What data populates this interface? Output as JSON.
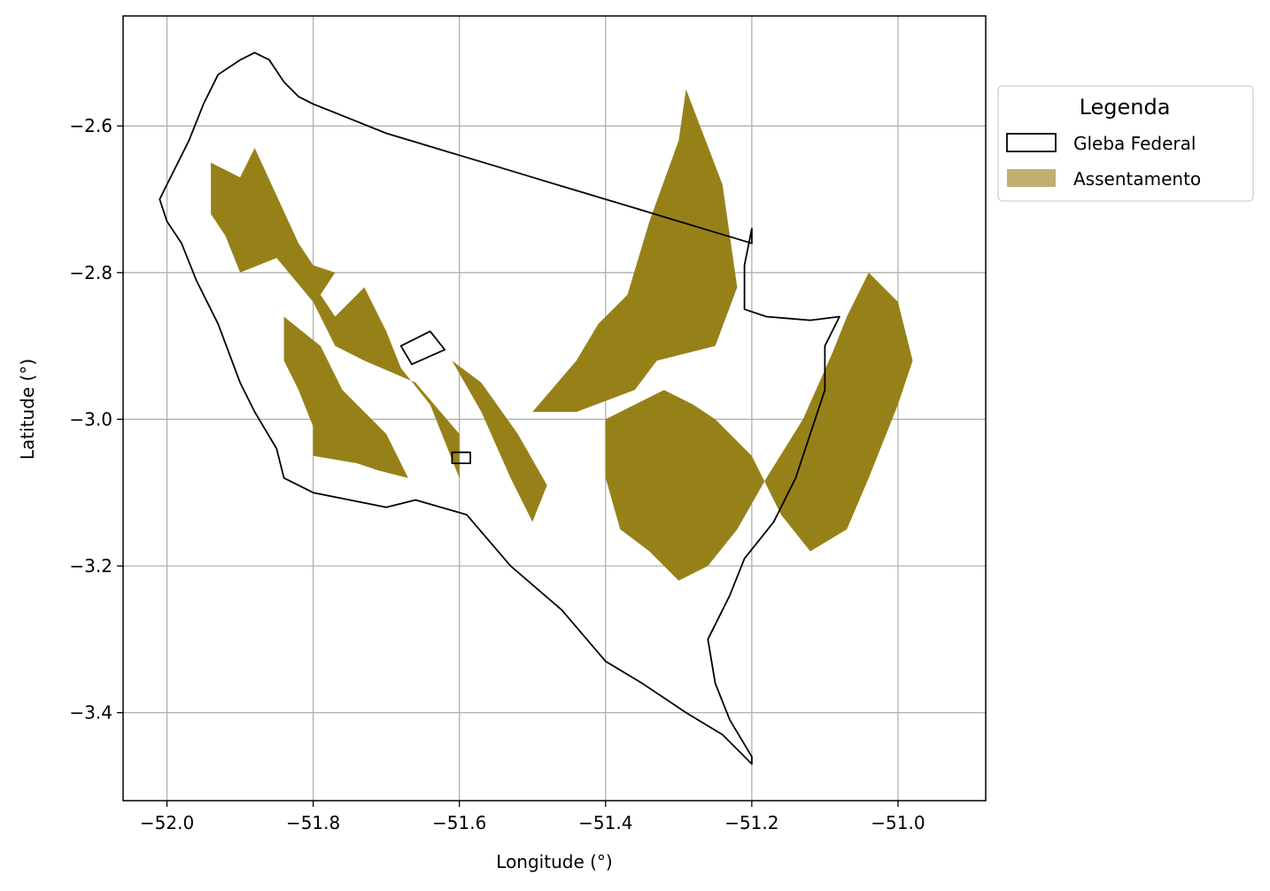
{
  "chart_data": {
    "type": "map",
    "xlabel": "Longitude (°)",
    "ylabel": "Latitude (°)",
    "xlim": [
      -52.06,
      -50.88
    ],
    "ylim": [
      -3.52,
      -2.45
    ],
    "x_ticks": [
      -52.0,
      -51.8,
      -51.6,
      -51.4,
      -51.2,
      -51.0
    ],
    "x_tick_labels": [
      "−52.0",
      "−51.8",
      "−51.6",
      "−51.4",
      "−51.2",
      "−51.0"
    ],
    "y_ticks": [
      -2.6,
      -2.8,
      -3.0,
      -3.2,
      -3.4
    ],
    "y_tick_labels": [
      "−2.6",
      "−2.8",
      "−3.0",
      "−3.2",
      "−3.4"
    ],
    "grid": true,
    "legend": {
      "title": "Legenda",
      "placement": "outside-right-top",
      "entries": [
        {
          "label": "Gleba Federal",
          "style": "outline",
          "edge_color": "#000000",
          "fill": "none"
        },
        {
          "label": "Assentamento",
          "style": "filled",
          "color": "#bfb170"
        }
      ]
    },
    "colors": {
      "assentamento": "#968119",
      "gleba_outline": "#000000",
      "grid": "#b0b0b0"
    },
    "layers": [
      {
        "name": "Gleba Federal",
        "polygons": [
          [
            [
              -51.88,
              -2.5
            ],
            [
              -51.86,
              -2.51
            ],
            [
              -51.84,
              -2.54
            ],
            [
              -51.82,
              -2.56
            ],
            [
              -51.8,
              -2.57
            ],
            [
              -51.75,
              -2.59
            ],
            [
              -51.7,
              -2.61
            ],
            [
              -51.65,
              -2.625
            ],
            [
              -51.6,
              -2.64
            ],
            [
              -51.55,
              -2.655
            ],
            [
              -51.5,
              -2.67
            ],
            [
              -51.45,
              -2.685
            ],
            [
              -51.4,
              -2.7
            ],
            [
              -51.35,
              -2.715
            ],
            [
              -51.3,
              -2.73
            ],
            [
              -51.25,
              -2.745
            ],
            [
              -51.2,
              -2.76
            ],
            [
              -51.2,
              -2.74
            ],
            [
              -51.21,
              -2.79
            ],
            [
              -51.21,
              -2.85
            ],
            [
              -51.18,
              -2.86
            ],
            [
              -51.12,
              -2.865
            ],
            [
              -51.08,
              -2.86
            ],
            [
              -51.1,
              -2.9
            ],
            [
              -51.1,
              -2.96
            ],
            [
              -51.12,
              -3.02
            ],
            [
              -51.14,
              -3.08
            ],
            [
              -51.17,
              -3.14
            ],
            [
              -51.21,
              -3.19
            ],
            [
              -51.23,
              -3.24
            ],
            [
              -51.26,
              -3.3
            ],
            [
              -51.25,
              -3.36
            ],
            [
              -51.23,
              -3.41
            ],
            [
              -51.2,
              -3.46
            ],
            [
              -51.2,
              -3.47
            ],
            [
              -51.21,
              -3.46
            ],
            [
              -51.24,
              -3.43
            ],
            [
              -51.29,
              -3.4
            ],
            [
              -51.35,
              -3.36
            ],
            [
              -51.4,
              -3.33
            ],
            [
              -51.46,
              -3.26
            ],
            [
              -51.53,
              -3.2
            ],
            [
              -51.59,
              -3.13
            ],
            [
              -51.66,
              -3.11
            ],
            [
              -51.7,
              -3.12
            ],
            [
              -51.75,
              -3.11
            ],
            [
              -51.8,
              -3.1
            ],
            [
              -51.84,
              -3.08
            ],
            [
              -51.85,
              -3.04
            ],
            [
              -51.88,
              -2.99
            ],
            [
              -51.9,
              -2.95
            ],
            [
              -51.93,
              -2.87
            ],
            [
              -51.96,
              -2.81
            ],
            [
              -51.98,
              -2.76
            ],
            [
              -52.0,
              -2.73
            ],
            [
              -52.01,
              -2.7
            ],
            [
              -52.0,
              -2.68
            ],
            [
              -51.97,
              -2.62
            ],
            [
              -51.95,
              -2.57
            ],
            [
              -51.93,
              -2.53
            ],
            [
              -51.9,
              -2.51
            ],
            [
              -51.88,
              -2.5
            ]
          ],
          [
            [
              -51.68,
              -2.9
            ],
            [
              -51.64,
              -2.88
            ],
            [
              -51.62,
              -2.905
            ],
            [
              -51.665,
              -2.925
            ],
            [
              -51.68,
              -2.9
            ]
          ],
          [
            [
              -51.61,
              -3.045
            ],
            [
              -51.585,
              -3.045
            ],
            [
              -51.585,
              -3.06
            ],
            [
              -51.61,
              -3.06
            ],
            [
              -51.61,
              -3.045
            ]
          ]
        ]
      },
      {
        "name": "Assentamento",
        "polygons": [
          [
            [
              -51.94,
              -2.65
            ],
            [
              -51.9,
              -2.67
            ],
            [
              -51.88,
              -2.63
            ],
            [
              -51.82,
              -2.76
            ],
            [
              -51.8,
              -2.79
            ],
            [
              -51.77,
              -2.8
            ],
            [
              -51.79,
              -2.83
            ],
            [
              -51.77,
              -2.86
            ],
            [
              -51.73,
              -2.82
            ],
            [
              -51.7,
              -2.88
            ],
            [
              -51.68,
              -2.93
            ],
            [
              -51.64,
              -2.98
            ],
            [
              -51.6,
              -3.08
            ],
            [
              -51.6,
              -3.02
            ],
            [
              -51.66,
              -2.95
            ],
            [
              -51.73,
              -2.92
            ],
            [
              -51.77,
              -2.9
            ],
            [
              -51.8,
              -2.84
            ],
            [
              -51.85,
              -2.78
            ],
            [
              -51.9,
              -2.8
            ],
            [
              -51.92,
              -2.75
            ],
            [
              -51.94,
              -2.72
            ],
            [
              -51.94,
              -2.65
            ]
          ],
          [
            [
              -51.84,
              -2.86
            ],
            [
              -51.79,
              -2.9
            ],
            [
              -51.76,
              -2.96
            ],
            [
              -51.7,
              -3.02
            ],
            [
              -51.67,
              -3.08
            ],
            [
              -51.71,
              -3.07
            ],
            [
              -51.74,
              -3.06
            ],
            [
              -51.8,
              -3.05
            ],
            [
              -51.8,
              -3.01
            ],
            [
              -51.82,
              -2.96
            ],
            [
              -51.84,
              -2.92
            ],
            [
              -51.84,
              -2.86
            ]
          ],
          [
            [
              -51.61,
              -2.92
            ],
            [
              -51.57,
              -2.99
            ],
            [
              -51.53,
              -3.08
            ],
            [
              -51.5,
              -3.14
            ],
            [
              -51.48,
              -3.09
            ],
            [
              -51.52,
              -3.02
            ],
            [
              -51.57,
              -2.95
            ],
            [
              -51.61,
              -2.92
            ]
          ],
          [
            [
              -51.5,
              -2.99
            ],
            [
              -51.44,
              -2.92
            ],
            [
              -51.41,
              -2.87
            ],
            [
              -51.37,
              -2.83
            ],
            [
              -51.34,
              -2.73
            ],
            [
              -51.3,
              -2.62
            ],
            [
              -51.29,
              -2.55
            ],
            [
              -51.24,
              -2.68
            ],
            [
              -51.22,
              -2.82
            ],
            [
              -51.25,
              -2.9
            ],
            [
              -51.33,
              -2.92
            ],
            [
              -51.36,
              -2.96
            ],
            [
              -51.44,
              -2.99
            ],
            [
              -51.5,
              -2.99
            ]
          ],
          [
            [
              -51.4,
              -3.0
            ],
            [
              -51.32,
              -2.96
            ],
            [
              -51.28,
              -2.98
            ],
            [
              -51.25,
              -3.0
            ],
            [
              -51.2,
              -3.05
            ],
            [
              -51.16,
              -3.13
            ],
            [
              -51.12,
              -3.18
            ],
            [
              -51.07,
              -3.15
            ],
            [
              -51.04,
              -3.08
            ],
            [
              -51.02,
              -3.03
            ],
            [
              -51.0,
              -2.98
            ],
            [
              -50.98,
              -2.92
            ],
            [
              -51.0,
              -2.84
            ],
            [
              -51.04,
              -2.8
            ],
            [
              -51.07,
              -2.86
            ],
            [
              -51.09,
              -2.91
            ],
            [
              -51.13,
              -3.0
            ],
            [
              -51.18,
              -3.08
            ],
            [
              -51.22,
              -3.15
            ],
            [
              -51.26,
              -3.2
            ],
            [
              -51.3,
              -3.22
            ],
            [
              -51.34,
              -3.18
            ],
            [
              -51.38,
              -3.15
            ],
            [
              -51.4,
              -3.08
            ],
            [
              -51.4,
              -3.0
            ]
          ]
        ]
      }
    ]
  }
}
